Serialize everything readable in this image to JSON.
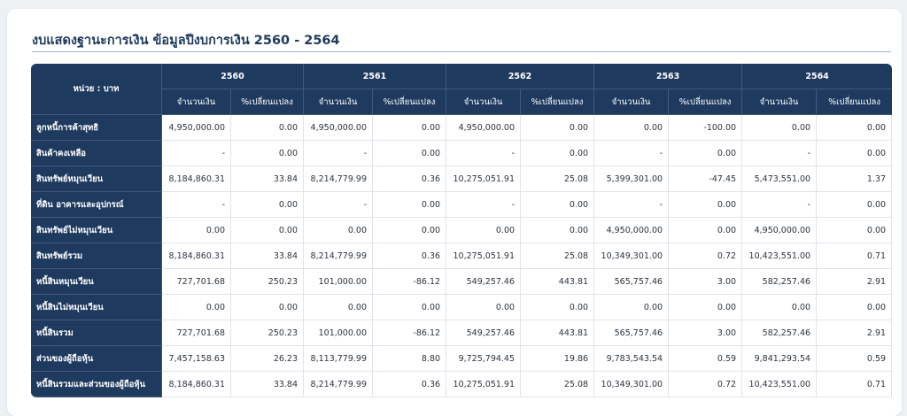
{
  "title": "งบแสดงฐานะการเงิน ข้อมูลปีงบการเงิน 2560 - 2564",
  "unit_label": "หน่วย : บาท",
  "years": [
    "2560",
    "2561",
    "2562",
    "2563",
    "2564"
  ],
  "sub_headers": {
    "amount": "จำนวนเงิน",
    "pct": "%เปลี่ยนแปลง"
  },
  "colors": {
    "header_bg": "#1e3a5f",
    "accent_text": "#1e3a5f"
  },
  "rows": [
    {
      "label": "ลูกหนี้การค้าสุทธิ",
      "cells": [
        "4,950,000.00",
        "0.00",
        "4,950,000.00",
        "0.00",
        "4,950,000.00",
        "0.00",
        "0.00",
        "-100.00",
        "0.00",
        "0.00"
      ]
    },
    {
      "label": "สินค้าคงเหลือ",
      "cells": [
        "-",
        "0.00",
        "-",
        "0.00",
        "-",
        "0.00",
        "-",
        "0.00",
        "-",
        "0.00"
      ]
    },
    {
      "label": "สินทรัพย์หมุนเวียน",
      "cells": [
        "8,184,860.31",
        "33.84",
        "8,214,779.99",
        "0.36",
        "10,275,051.91",
        "25.08",
        "5,399,301.00",
        "-47.45",
        "5,473,551.00",
        "1.37"
      ]
    },
    {
      "label": "ที่ดิน อาคารและอุปกรณ์",
      "cells": [
        "-",
        "0.00",
        "-",
        "0.00",
        "-",
        "0.00",
        "-",
        "0.00",
        "-",
        "0.00"
      ]
    },
    {
      "label": "สินทรัพย์ไม่หมุนเวียน",
      "cells": [
        "0.00",
        "0.00",
        "0.00",
        "0.00",
        "0.00",
        "0.00",
        "4,950,000.00",
        "0.00",
        "4,950,000.00",
        "0.00"
      ]
    },
    {
      "label": "สินทรัพย์รวม",
      "cells": [
        "8,184,860.31",
        "33.84",
        "8,214,779.99",
        "0.36",
        "10,275,051.91",
        "25.08",
        "10,349,301.00",
        "0.72",
        "10,423,551.00",
        "0.71"
      ]
    },
    {
      "label": "หนี้สินหมุนเวียน",
      "cells": [
        "727,701.68",
        "250.23",
        "101,000.00",
        "-86.12",
        "549,257.46",
        "443.81",
        "565,757.46",
        "3.00",
        "582,257.46",
        "2.91"
      ]
    },
    {
      "label": "หนี้สินไม่หมุนเวียน",
      "cells": [
        "0.00",
        "0.00",
        "0.00",
        "0.00",
        "0.00",
        "0.00",
        "0.00",
        "0.00",
        "0.00",
        "0.00"
      ]
    },
    {
      "label": "หนี้สินรวม",
      "cells": [
        "727,701.68",
        "250.23",
        "101,000.00",
        "-86.12",
        "549,257.46",
        "443.81",
        "565,757.46",
        "3.00",
        "582,257.46",
        "2.91"
      ]
    },
    {
      "label": "ส่วนของผู้ถือหุ้น",
      "cells": [
        "7,457,158.63",
        "26.23",
        "8,113,779.99",
        "8.80",
        "9,725,794.45",
        "19.86",
        "9,783,543.54",
        "0.59",
        "9,841,293.54",
        "0.59"
      ]
    },
    {
      "label": "หนี้สินรวมและส่วนของผู้ถือหุ้น",
      "cells": [
        "8,184,860.31",
        "33.84",
        "8,214,779.99",
        "0.36",
        "10,275,051.91",
        "25.08",
        "10,349,301.00",
        "0.72",
        "10,423,551.00",
        "0.71"
      ]
    }
  ]
}
